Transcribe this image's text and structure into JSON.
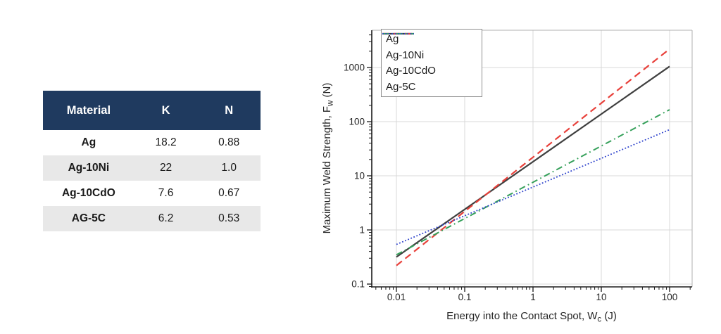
{
  "table": {
    "headers": {
      "material": "Material",
      "k": "K",
      "n": "N"
    },
    "rows": [
      {
        "material": "Ag",
        "k": "18.2",
        "n": "0.88"
      },
      {
        "material": "Ag-10Ni",
        "k": "22",
        "n": "1.0"
      },
      {
        "material": "Ag-10CdO",
        "k": "7.6",
        "n": "0.67"
      },
      {
        "material": "AG-5C",
        "k": "6.2",
        "n": "0.53"
      }
    ],
    "header_bg": "#1f3a5f",
    "header_text": "#ffffff",
    "alt_row_bg": "#e8e8e8"
  },
  "chart_data": {
    "type": "line",
    "model": "F_w = K * W_c^N for W_c in [0.01, 100] J (straight lines on log-log axes)",
    "w_range": [
      0.01,
      100
    ],
    "x_axis": {
      "label_pre": "Energy into the Contact Spot, W",
      "label_sub": "c",
      "label_post": " (J)",
      "scale": "log",
      "ticks": [
        0.01,
        0.1,
        1,
        10,
        100
      ],
      "tick_labels": [
        "0.01",
        "0.1",
        "1",
        "10",
        "100"
      ],
      "range": [
        0.0044,
        210
      ]
    },
    "y_axis": {
      "label_pre": "Maximum Weld Strength, F",
      "label_sub": "w",
      "label_post": " (N)",
      "scale": "log",
      "ticks": [
        0.1,
        1,
        10,
        100,
        1000
      ],
      "tick_labels": [
        "0.1",
        "1",
        "10",
        "100",
        "1000"
      ],
      "range": [
        0.09,
        4900
      ]
    },
    "series": [
      {
        "name": "Ag",
        "K": 18.2,
        "N": 0.88,
        "color": "#3f3f3f",
        "style": "solid",
        "endpoints": {
          "F_at_0.01": 0.32,
          "F_at_100": 1047
        }
      },
      {
        "name": "Ag-10Ni",
        "K": 22,
        "N": 1.0,
        "color": "#e8403a",
        "style": "dashed",
        "endpoints": {
          "F_at_0.01": 0.22,
          "F_at_100": 2200
        }
      },
      {
        "name": "Ag-10CdO",
        "K": 7.6,
        "N": 0.67,
        "color": "#35a05a",
        "style": "dashdot",
        "endpoints": {
          "F_at_0.01": 0.35,
          "F_at_100": 166
        }
      },
      {
        "name": "Ag-5C",
        "K": 6.2,
        "N": 0.53,
        "color": "#2c41cc",
        "style": "dotted",
        "endpoints": {
          "F_at_0.01": 0.54,
          "F_at_100": 71
        }
      }
    ],
    "grid": true,
    "legend_position": "top-left",
    "grid_color": "#d9d9d9",
    "axis_color": "#1a1a1a",
    "frame_color": "#b0b0b0"
  }
}
